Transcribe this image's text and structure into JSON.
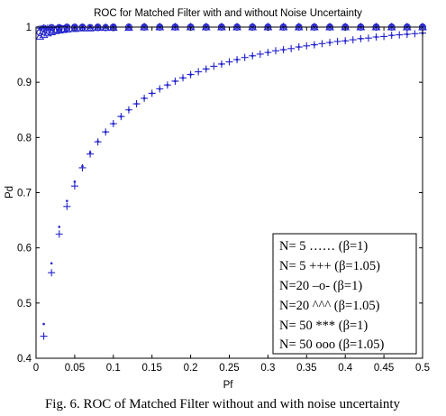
{
  "chart_data": {
    "type": "scatter",
    "title": "ROC for Matched Filter with and without Noise Uncertainty",
    "xlabel": "Pf",
    "ylabel": "Pd",
    "xlim": [
      0,
      0.5
    ],
    "ylim": [
      0.4,
      1.0
    ],
    "x_ticks": [
      "0",
      "0.05",
      "0.1",
      "0.15",
      "0.2",
      "0.25",
      "0.3",
      "0.35",
      "0.4",
      "0.45",
      "0.5"
    ],
    "y_ticks": [
      "0.4",
      "0.5",
      "0.6",
      "0.7",
      "0.8",
      "0.9",
      "1"
    ],
    "grid": false,
    "legend_position": "bottom-right",
    "legend": [
      "N= 5 ……  (β=1)",
      "N=  5 +++  (β=1.05)",
      "N=20 –o-  (β=1)",
      "N=20 ^^^ (β=1.05)",
      "N= 50 ***  (β=1)",
      "N= 50 ooo (β=1.05)"
    ],
    "series": [
      {
        "marker": "dot",
        "x": [
          0.01,
          0.02,
          0.03,
          0.04,
          0.05,
          0.06,
          0.07,
          0.08,
          0.09,
          0.1,
          0.11,
          0.12,
          0.13,
          0.14,
          0.15,
          0.16,
          0.17,
          0.18,
          0.19,
          0.2,
          0.22,
          0.24,
          0.26,
          0.28,
          0.3,
          0.32,
          0.34,
          0.36,
          0.38,
          0.4,
          0.42,
          0.44,
          0.46,
          0.48,
          0.5
        ],
        "y": [
          0.462,
          0.572,
          0.638,
          0.685,
          0.72,
          0.748,
          0.773,
          0.793,
          0.81,
          0.825,
          0.838,
          0.85,
          0.861,
          0.871,
          0.88,
          0.888,
          0.895,
          0.902,
          0.908,
          0.914,
          0.924,
          0.933,
          0.941,
          0.948,
          0.954,
          0.959,
          0.964,
          0.968,
          0.972,
          0.975,
          0.979,
          0.982,
          0.985,
          0.987,
          0.989
        ]
      },
      {
        "marker": "plus",
        "x": [
          0.01,
          0.02,
          0.03,
          0.04,
          0.05,
          0.06,
          0.07,
          0.08,
          0.09,
          0.1,
          0.11,
          0.12,
          0.13,
          0.14,
          0.15,
          0.16,
          0.17,
          0.18,
          0.19,
          0.2,
          0.21,
          0.22,
          0.23,
          0.24,
          0.25,
          0.26,
          0.27,
          0.28,
          0.29,
          0.3,
          0.31,
          0.32,
          0.33,
          0.34,
          0.35,
          0.36,
          0.37,
          0.38,
          0.39,
          0.4,
          0.41,
          0.42,
          0.43,
          0.44,
          0.45,
          0.46,
          0.47,
          0.48,
          0.49,
          0.5
        ],
        "y": [
          0.44,
          0.555,
          0.625,
          0.675,
          0.712,
          0.745,
          0.77,
          0.792,
          0.81,
          0.825,
          0.838,
          0.85,
          0.861,
          0.871,
          0.88,
          0.888,
          0.895,
          0.902,
          0.908,
          0.914,
          0.919,
          0.924,
          0.929,
          0.933,
          0.937,
          0.941,
          0.945,
          0.948,
          0.951,
          0.954,
          0.957,
          0.959,
          0.961,
          0.964,
          0.966,
          0.968,
          0.97,
          0.972,
          0.974,
          0.975,
          0.977,
          0.979,
          0.98,
          0.982,
          0.983,
          0.985,
          0.986,
          0.987,
          0.988,
          0.989
        ]
      },
      {
        "marker": "circle",
        "x": [
          0.005,
          0.01,
          0.015,
          0.02,
          0.025,
          0.03,
          0.035,
          0.04,
          0.05,
          0.06,
          0.07,
          0.08,
          0.09,
          0.1,
          0.12,
          0.14,
          0.16,
          0.18,
          0.2,
          0.22,
          0.24,
          0.26,
          0.28,
          0.3,
          0.32,
          0.34,
          0.36,
          0.38,
          0.4,
          0.42,
          0.44,
          0.46,
          0.48,
          0.5
        ],
        "y": [
          0.99,
          0.992,
          0.994,
          0.995,
          0.996,
          0.997,
          0.997,
          0.998,
          0.998,
          0.999,
          0.999,
          0.999,
          0.999,
          0.999,
          1.0,
          1.0,
          1.0,
          1.0,
          1.0,
          1.0,
          1.0,
          1.0,
          1.0,
          1.0,
          1.0,
          1.0,
          1.0,
          1.0,
          1.0,
          1.0,
          1.0,
          1.0,
          1.0,
          1.0
        ]
      },
      {
        "marker": "triangle",
        "x": [
          0.005,
          0.01,
          0.015,
          0.02,
          0.025,
          0.03,
          0.035,
          0.04,
          0.05,
          0.06,
          0.07,
          0.08,
          0.09,
          0.1,
          0.12,
          0.14,
          0.16,
          0.18,
          0.2,
          0.22,
          0.24,
          0.26,
          0.28,
          0.3,
          0.32,
          0.34,
          0.36,
          0.38,
          0.4,
          0.42,
          0.44,
          0.46,
          0.48,
          0.5
        ],
        "y": [
          0.983,
          0.986,
          0.989,
          0.991,
          0.993,
          0.994,
          0.995,
          0.996,
          0.997,
          0.998,
          0.998,
          0.999,
          0.999,
          0.999,
          0.999,
          1.0,
          1.0,
          1.0,
          1.0,
          1.0,
          1.0,
          1.0,
          1.0,
          1.0,
          1.0,
          1.0,
          1.0,
          1.0,
          1.0,
          1.0,
          1.0,
          1.0,
          1.0,
          1.0
        ]
      },
      {
        "marker": "star",
        "x": [
          0.005,
          0.01,
          0.015,
          0.02,
          0.03,
          0.04,
          0.05,
          0.06,
          0.07,
          0.08,
          0.09,
          0.1,
          0.12,
          0.14,
          0.16,
          0.18,
          0.2,
          0.22,
          0.24,
          0.26,
          0.28,
          0.3,
          0.32,
          0.34,
          0.36,
          0.38,
          0.4,
          0.42,
          0.44,
          0.46,
          0.48,
          0.5
        ],
        "y": [
          0.998,
          0.999,
          0.999,
          1.0,
          1.0,
          1.0,
          1.0,
          1.0,
          1.0,
          1.0,
          1.0,
          1.0,
          1.0,
          1.0,
          1.0,
          1.0,
          1.0,
          1.0,
          1.0,
          1.0,
          1.0,
          1.0,
          1.0,
          1.0,
          1.0,
          1.0,
          1.0,
          1.0,
          1.0,
          1.0,
          1.0,
          1.0
        ]
      },
      {
        "marker": "circle",
        "x": [
          0.01,
          0.02,
          0.03,
          0.04,
          0.05,
          0.06,
          0.08,
          0.1,
          0.12,
          0.14,
          0.16,
          0.18,
          0.2,
          0.22,
          0.24,
          0.26,
          0.28,
          0.3,
          0.32,
          0.34,
          0.36,
          0.38,
          0.4,
          0.42,
          0.44,
          0.46,
          0.48,
          0.5
        ],
        "y": [
          0.998,
          0.999,
          0.999,
          1.0,
          1.0,
          1.0,
          1.0,
          1.0,
          1.0,
          1.0,
          1.0,
          1.0,
          1.0,
          1.0,
          1.0,
          1.0,
          1.0,
          1.0,
          1.0,
          1.0,
          1.0,
          1.0,
          1.0,
          1.0,
          1.0,
          1.0,
          1.0,
          1.0
        ]
      }
    ],
    "marker_color": "#2222cc"
  },
  "caption": "Fig. 6. ROC of Matched Filter without and with noise uncertainty"
}
